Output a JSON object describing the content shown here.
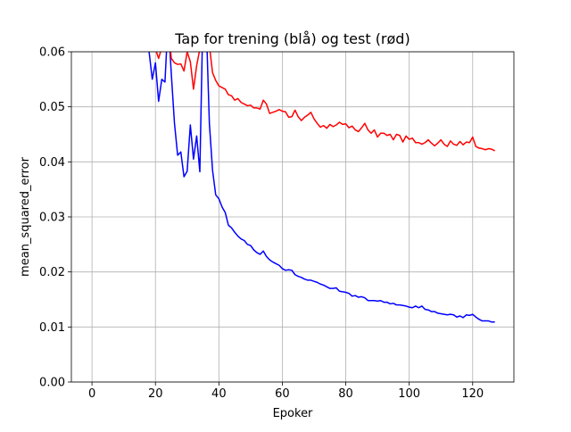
{
  "chart_data": {
    "type": "line",
    "title": "Tap for trening (blå) og test (rød)",
    "xlabel": "Epoker",
    "ylabel": "mean_squared_error",
    "xlim": [
      -6.5,
      133
    ],
    "ylim": [
      0.0,
      0.06
    ],
    "xticks": [
      0,
      20,
      40,
      60,
      80,
      100,
      120
    ],
    "xtick_labels": [
      "0",
      "20",
      "40",
      "60",
      "80",
      "100",
      "120"
    ],
    "yticks": [
      0.0,
      0.01,
      0.02,
      0.03,
      0.04,
      0.05,
      0.06
    ],
    "ytick_labels": [
      "0.00",
      "0.01",
      "0.02",
      "0.03",
      "0.04",
      "0.05",
      "0.06"
    ],
    "grid": true,
    "series": [
      {
        "color": "#0000ff",
        "x": [
          17,
          18,
          19,
          20,
          21,
          22,
          23,
          24,
          25,
          26,
          27,
          28,
          29,
          30,
          31,
          32,
          33,
          34,
          35,
          36,
          37,
          38,
          39,
          40,
          41,
          42,
          43,
          44,
          45,
          46,
          47,
          48,
          49,
          50,
          51,
          52,
          53,
          54,
          55,
          56,
          57,
          58,
          59,
          60,
          61,
          62,
          63,
          64,
          65,
          66,
          67,
          68,
          69,
          70,
          71,
          72,
          73,
          74,
          75,
          76,
          77,
          78,
          79,
          80,
          81,
          82,
          83,
          84,
          85,
          86,
          87,
          88,
          89,
          90,
          91,
          92,
          93,
          94,
          95,
          96,
          97,
          98,
          99,
          100,
          101,
          102,
          103,
          104,
          105,
          106,
          107,
          108,
          109,
          110,
          111,
          112,
          113,
          114,
          115,
          116,
          117,
          118,
          119,
          120,
          121,
          122,
          123,
          124,
          125,
          126,
          127
        ],
        "y": [
          0.0625,
          0.06,
          0.055,
          0.058,
          0.051,
          0.055,
          0.0545,
          0.066,
          0.056,
          0.047,
          0.0412,
          0.0418,
          0.0373,
          0.0383,
          0.0467,
          0.0405,
          0.0447,
          0.0382,
          0.068,
          0.0655,
          0.047,
          0.0385,
          0.034,
          0.0333,
          0.0318,
          0.0308,
          0.0285,
          0.028,
          0.0272,
          0.0265,
          0.026,
          0.0257,
          0.025,
          0.0248,
          0.024,
          0.0235,
          0.0232,
          0.0238,
          0.0228,
          0.0222,
          0.0218,
          0.0215,
          0.0212,
          0.0206,
          0.0203,
          0.0204,
          0.0203,
          0.0195,
          0.0192,
          0.019,
          0.0187,
          0.0185,
          0.0185,
          0.0183,
          0.0181,
          0.0178,
          0.0176,
          0.0173,
          0.017,
          0.017,
          0.0171,
          0.0165,
          0.0164,
          0.0163,
          0.0161,
          0.0156,
          0.0157,
          0.0154,
          0.0155,
          0.0153,
          0.0148,
          0.0148,
          0.0148,
          0.0147,
          0.0148,
          0.0145,
          0.0145,
          0.0142,
          0.0143,
          0.014,
          0.014,
          0.0139,
          0.0138,
          0.0136,
          0.0135,
          0.0138,
          0.0135,
          0.0138,
          0.0132,
          0.0131,
          0.0128,
          0.0128,
          0.0125,
          0.0124,
          0.0123,
          0.0122,
          0.0123,
          0.0122,
          0.0118,
          0.012,
          0.0117,
          0.0122,
          0.0121,
          0.0123,
          0.0118,
          0.0114,
          0.0111,
          0.0111,
          0.0111,
          0.0109,
          0.0109
        ]
      },
      {
        "color": "#ff0000",
        "x": [
          20,
          21,
          22,
          23,
          24,
          25,
          26,
          27,
          28,
          29,
          30,
          31,
          32,
          33,
          34,
          35,
          36,
          37,
          38,
          39,
          40,
          41,
          42,
          43,
          44,
          45,
          46,
          47,
          48,
          49,
          50,
          51,
          52,
          53,
          54,
          55,
          56,
          57,
          58,
          59,
          60,
          61,
          62,
          63,
          64,
          65,
          66,
          67,
          68,
          69,
          70,
          71,
          72,
          73,
          74,
          75,
          76,
          77,
          78,
          79,
          80,
          81,
          82,
          83,
          84,
          85,
          86,
          87,
          88,
          89,
          90,
          91,
          92,
          93,
          94,
          95,
          96,
          97,
          98,
          99,
          100,
          101,
          102,
          103,
          104,
          105,
          106,
          107,
          108,
          109,
          110,
          111,
          112,
          113,
          114,
          115,
          116,
          117,
          118,
          119,
          120,
          121,
          122,
          123,
          124,
          125,
          126,
          127
        ],
        "y": [
          0.0605,
          0.0588,
          0.0608,
          0.0625,
          0.065,
          0.0588,
          0.058,
          0.0577,
          0.0578,
          0.0565,
          0.06,
          0.0582,
          0.0532,
          0.0575,
          0.0605,
          0.064,
          0.063,
          0.0612,
          0.0562,
          0.0548,
          0.0538,
          0.0535,
          0.0532,
          0.0522,
          0.052,
          0.0512,
          0.0515,
          0.0508,
          0.0505,
          0.0502,
          0.0503,
          0.0498,
          0.0498,
          0.0496,
          0.0512,
          0.0505,
          0.0488,
          0.049,
          0.0492,
          0.0495,
          0.0492,
          0.0491,
          0.0481,
          0.0482,
          0.0494,
          0.0482,
          0.0475,
          0.0481,
          0.0485,
          0.049,
          0.0478,
          0.047,
          0.0463,
          0.0466,
          0.0461,
          0.0468,
          0.0464,
          0.0467,
          0.0472,
          0.0468,
          0.0469,
          0.0462,
          0.0465,
          0.0458,
          0.0455,
          0.0462,
          0.047,
          0.0458,
          0.0452,
          0.0458,
          0.0445,
          0.0452,
          0.0452,
          0.0448,
          0.045,
          0.044,
          0.045,
          0.0448,
          0.0436,
          0.0447,
          0.0441,
          0.0443,
          0.0435,
          0.0435,
          0.0432,
          0.0435,
          0.044,
          0.0434,
          0.0429,
          0.0434,
          0.044,
          0.0432,
          0.0428,
          0.0438,
          0.0432,
          0.043,
          0.0437,
          0.0431,
          0.0436,
          0.0435,
          0.0445,
          0.0428,
          0.0425,
          0.0424,
          0.0422,
          0.0424,
          0.0423,
          0.042
        ]
      }
    ]
  }
}
